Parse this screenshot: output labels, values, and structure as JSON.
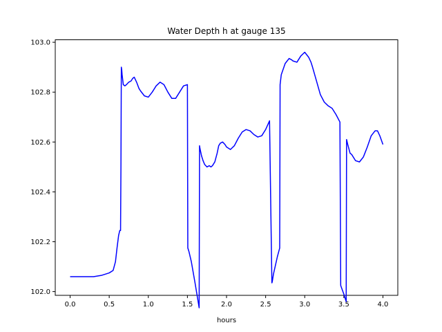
{
  "chart_data": {
    "type": "line",
    "title": "Water Depth h at gauge 135",
    "xlabel": "hours",
    "ylabel": "",
    "xlim": [
      -0.19,
      4.19
    ],
    "ylim": [
      101.985,
      103.01
    ],
    "xticks": [
      0.0,
      0.5,
      1.0,
      1.5,
      2.0,
      2.5,
      3.0,
      3.5,
      4.0
    ],
    "xtick_labels": [
      "0.0",
      "0.5",
      "1.0",
      "1.5",
      "2.0",
      "2.5",
      "3.0",
      "3.5",
      "4.0"
    ],
    "yticks": [
      102.0,
      102.2,
      102.4,
      102.6,
      102.8,
      103.0
    ],
    "ytick_labels": [
      "102.0",
      "102.2",
      "102.4",
      "102.6",
      "102.8",
      "103.0"
    ],
    "grid": false,
    "series": [
      {
        "name": "",
        "color": "#0000ff",
        "x": [
          0.0,
          0.2,
          0.3,
          0.4,
          0.5,
          0.55,
          0.58,
          0.6,
          0.62,
          0.635,
          0.645,
          0.65,
          0.655,
          0.66,
          0.665,
          0.68,
          0.7,
          0.72,
          0.75,
          0.78,
          0.8,
          0.82,
          0.85,
          0.88,
          0.9,
          0.95,
          1.0,
          1.05,
          1.1,
          1.15,
          1.2,
          1.25,
          1.3,
          1.35,
          1.4,
          1.45,
          1.5,
          1.505,
          1.52,
          1.55,
          1.6,
          1.65,
          1.655,
          1.66,
          1.67,
          1.68,
          1.7,
          1.72,
          1.75,
          1.78,
          1.8,
          1.82,
          1.85,
          1.88,
          1.9,
          1.92,
          1.95,
          1.98,
          2.0,
          2.05,
          2.1,
          2.15,
          2.2,
          2.25,
          2.3,
          2.35,
          2.4,
          2.45,
          2.5,
          2.55,
          2.58,
          2.585,
          2.6,
          2.65,
          2.68,
          2.685,
          2.7,
          2.75,
          2.8,
          2.83,
          2.85,
          2.9,
          2.95,
          3.0,
          3.05,
          3.08,
          3.1,
          3.15,
          3.2,
          3.25,
          3.3,
          3.35,
          3.4,
          3.45,
          3.46,
          3.465,
          3.5,
          3.53,
          3.535,
          3.55,
          3.58,
          3.6,
          3.65,
          3.7,
          3.75,
          3.8,
          3.85,
          3.9,
          3.93,
          3.96,
          4.0
        ],
        "values": [
          102.06,
          102.06,
          102.06,
          102.065,
          102.075,
          102.085,
          102.12,
          102.175,
          102.225,
          102.245,
          102.245,
          102.5,
          102.9,
          102.89,
          102.87,
          102.83,
          102.825,
          102.83,
          102.84,
          102.845,
          102.855,
          102.86,
          102.84,
          102.815,
          102.805,
          102.785,
          102.78,
          102.8,
          102.825,
          102.84,
          102.83,
          102.8,
          102.775,
          102.775,
          102.8,
          102.825,
          102.83,
          102.175,
          102.16,
          102.12,
          102.03,
          101.935,
          102.585,
          102.575,
          102.56,
          102.545,
          102.525,
          102.51,
          102.5,
          102.505,
          102.5,
          102.505,
          102.52,
          102.555,
          102.585,
          102.595,
          102.6,
          102.59,
          102.58,
          102.57,
          102.585,
          102.615,
          102.64,
          102.65,
          102.645,
          102.63,
          102.62,
          102.625,
          102.65,
          102.685,
          102.035,
          102.04,
          102.07,
          102.14,
          102.175,
          102.83,
          102.87,
          102.915,
          102.935,
          102.93,
          102.925,
          102.92,
          102.945,
          102.96,
          102.94,
          102.92,
          102.9,
          102.845,
          102.79,
          102.76,
          102.745,
          102.735,
          102.71,
          102.68,
          102.025,
          102.02,
          101.99,
          101.96,
          102.61,
          102.59,
          102.555,
          102.55,
          102.525,
          102.52,
          102.54,
          102.58,
          102.625,
          102.645,
          102.645,
          102.625,
          102.59
        ]
      }
    ]
  }
}
